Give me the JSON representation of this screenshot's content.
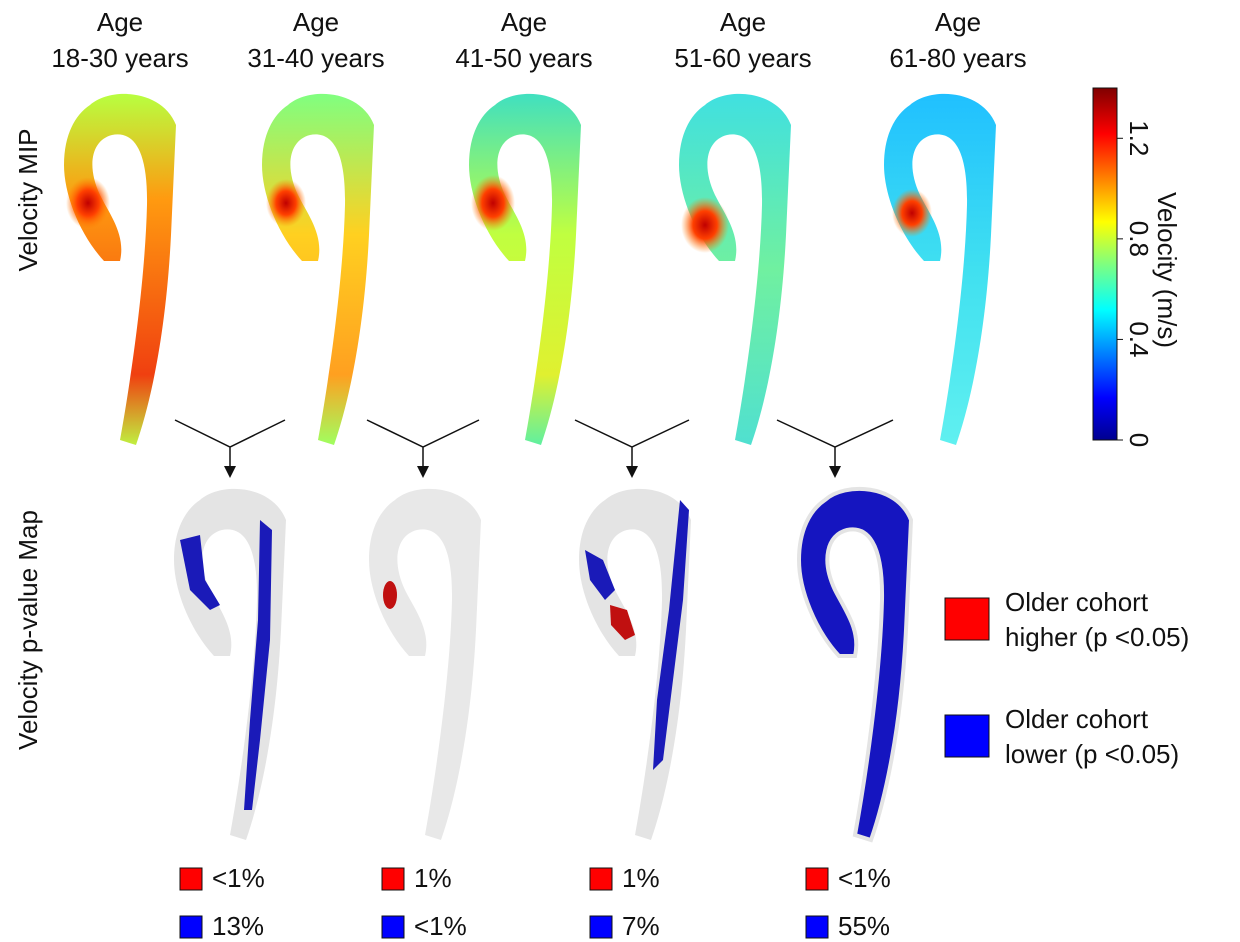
{
  "columns": [
    {
      "line1": "Age",
      "line2": "18-30 years"
    },
    {
      "line1": "Age",
      "line2": "31-40 years"
    },
    {
      "line1": "Age",
      "line2": "41-50 years"
    },
    {
      "line1": "Age",
      "line2": "51-60 years"
    },
    {
      "line1": "Age",
      "line2": "61-80 years"
    }
  ],
  "row_labels": [
    "Velocity MIP",
    "Velocity p-value Map"
  ],
  "colorbar": {
    "label": "Velocity (m/s)",
    "lim": [
      0,
      1.4
    ],
    "ticks": [
      0,
      0.4,
      0.8,
      1.2
    ]
  },
  "comparisons": [
    {
      "higher": "<1%",
      "lower": "13%"
    },
    {
      "higher": "1%",
      "lower": "<1%"
    },
    {
      "higher": "1%",
      "lower": "7%"
    },
    {
      "higher": "<1%",
      "lower": "55%"
    }
  ],
  "legend": [
    {
      "line1": "Older cohort",
      "line2": "higher (p <0.05)",
      "color": "#ff0000"
    },
    {
      "line1": "Older cohort",
      "line2": "lower (p <0.05)",
      "color": "#0000ff"
    }
  ]
}
